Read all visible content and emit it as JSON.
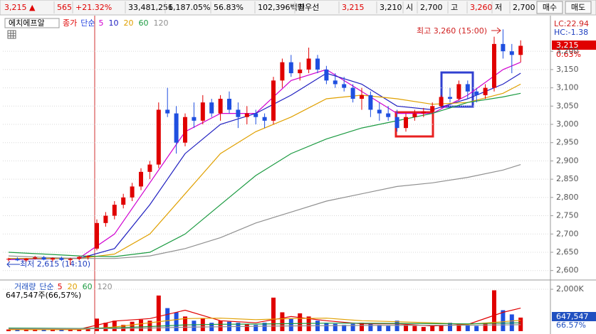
{
  "header": {
    "items": [
      {
        "text": "3,215 ▲",
        "color": "#e00000"
      },
      {
        "text": "565",
        "color": "#e00000"
      },
      {
        "text": "+21.32%",
        "color": "#e00000"
      },
      {
        "text": "33,481,256",
        "color": "#000000"
      },
      {
        "text": "1,187.05%",
        "color": "#000000"
      },
      {
        "text": "56.83%",
        "color": "#000000"
      },
      {
        "text": "102,396백만",
        "color": "#000000"
      },
      {
        "text": "최우선",
        "color": "#000000"
      },
      {
        "text": "3,215",
        "color": "#e00000"
      },
      {
        "text": "3,210",
        "color": "#000000"
      },
      {
        "text": "시",
        "color": "#000000"
      },
      {
        "text": "2,700",
        "color": "#000000"
      },
      {
        "text": "고",
        "color": "#000000"
      },
      {
        "text": "3,260",
        "color": "#e00000"
      },
      {
        "text": "저",
        "color": "#000000"
      },
      {
        "text": "2,700",
        "color": "#000000"
      }
    ],
    "buttons": [
      "매수",
      "매도"
    ]
  },
  "chart_data": [
    {
      "type": "candlestick",
      "title": "에치에프알",
      "legend_prefix": [
        {
          "text": "종가",
          "color": "#e00000"
        },
        {
          "text": "단순",
          "color": "#2040e0"
        }
      ],
      "up_color": "#e00000",
      "down_color": "#1f4fe0",
      "open": [
        2630,
        2632,
        2628,
        2633,
        2636,
        2630,
        2634,
        2629,
        2632,
        2637,
        2660,
        2730,
        2750,
        2780,
        2800,
        2830,
        2870,
        2890,
        3040,
        3030,
        2950,
        3020,
        3010,
        3060,
        3030,
        3070,
        3040,
        3020,
        3030,
        3020,
        3010,
        3120,
        3170,
        3140,
        3150,
        3180,
        3150,
        3120,
        3110,
        3100,
        3070,
        3080,
        3040,
        3030,
        3020,
        2990,
        3020,
        3030,
        3035,
        3050,
        3075,
        3070,
        3110,
        3090,
        3080,
        3100,
        3220,
        3200,
        3190
      ],
      "high": [
        2635,
        2636,
        2634,
        2640,
        2640,
        2636,
        2638,
        2635,
        2640,
        2642,
        2740,
        2760,
        2790,
        2810,
        2840,
        2880,
        2900,
        3060,
        3100,
        3050,
        3030,
        3060,
        3080,
        3070,
        3080,
        3090,
        3060,
        3050,
        3040,
        3030,
        3130,
        3180,
        3190,
        3170,
        3210,
        3190,
        3160,
        3140,
        3130,
        3110,
        3100,
        3090,
        3060,
        3050,
        3040,
        3030,
        3040,
        3045,
        3060,
        3080,
        3100,
        3120,
        3120,
        3100,
        3110,
        3240,
        3260,
        3220,
        3230
      ],
      "low": [
        2625,
        2626,
        2624,
        2630,
        2628,
        2625,
        2626,
        2615,
        2628,
        2630,
        2655,
        2720,
        2740,
        2770,
        2790,
        2820,
        2850,
        2880,
        3020,
        2920,
        2940,
        2990,
        3000,
        3020,
        3010,
        3030,
        2990,
        3000,
        3000,
        2990,
        3000,
        3100,
        3130,
        3120,
        3140,
        3140,
        3110,
        3100,
        3090,
        3060,
        3040,
        3020,
        3010,
        3010,
        2980,
        2980,
        3010,
        3020,
        3030,
        3045,
        3060,
        3065,
        3070,
        3060,
        3070,
        3090,
        3180,
        3140,
        3170
      ],
      "close": [
        2632,
        2628,
        2633,
        2636,
        2630,
        2634,
        2629,
        2632,
        2637,
        2640,
        2730,
        2750,
        2780,
        2800,
        2830,
        2870,
        2890,
        3040,
        3030,
        2950,
        3020,
        3010,
        3060,
        3030,
        3070,
        3040,
        3020,
        3030,
        3020,
        3010,
        3120,
        3170,
        3140,
        3150,
        3180,
        3150,
        3120,
        3110,
        3100,
        3070,
        3080,
        3040,
        3030,
        3020,
        2990,
        3020,
        3030,
        3035,
        3050,
        3075,
        3070,
        3110,
        3090,
        3080,
        3100,
        3220,
        3200,
        3190,
        3215
      ],
      "ylim": [
        2578,
        3282
      ],
      "yticks": [
        {
          "value": 2600,
          "label": "2,600"
        },
        {
          "value": 2650,
          "label": "2,650"
        },
        {
          "value": 2700,
          "label": "2,700"
        },
        {
          "value": 2750,
          "label": "2,750"
        },
        {
          "value": 2800,
          "label": "2,800"
        },
        {
          "value": 2850,
          "label": "2,850"
        },
        {
          "value": 2900,
          "label": "2,900"
        },
        {
          "value": 2950,
          "label": "2,950"
        },
        {
          "value": 3000,
          "label": "3,000"
        },
        {
          "value": 3050,
          "label": "3,050"
        },
        {
          "value": 3100,
          "label": "3,100"
        },
        {
          "value": 3150,
          "label": "3,150"
        },
        {
          "value": 3200,
          "label": "3,200"
        }
      ],
      "grid": true,
      "ma": [
        {
          "name": "5",
          "color": "#d000d0",
          "x": [
            0,
            4,
            8,
            12,
            16,
            20,
            24,
            28,
            32,
            36,
            40,
            44,
            48,
            52,
            56,
            58
          ],
          "values": [
            2630,
            2632,
            2634,
            2700,
            2840,
            2980,
            3030,
            3030,
            3120,
            3150,
            3090,
            3030,
            3030,
            3080,
            3150,
            3170
          ]
        },
        {
          "name": "10",
          "color": "#2020c0",
          "x": [
            0,
            4,
            8,
            12,
            16,
            20,
            24,
            28,
            32,
            36,
            40,
            44,
            48,
            52,
            56,
            58
          ],
          "values": [
            2632,
            2632,
            2633,
            2660,
            2780,
            2920,
            3000,
            3030,
            3080,
            3140,
            3110,
            3050,
            3040,
            3070,
            3110,
            3140
          ]
        },
        {
          "name": "20",
          "color": "#e0a000",
          "x": [
            0,
            4,
            8,
            12,
            16,
            20,
            24,
            28,
            32,
            36,
            40,
            44,
            48,
            52,
            56,
            58
          ],
          "values": [
            2633,
            2633,
            2633,
            2645,
            2700,
            2810,
            2920,
            2980,
            3020,
            3070,
            3080,
            3070,
            3055,
            3060,
            3085,
            3110
          ]
        },
        {
          "name": "60",
          "color": "#1a9a40",
          "x": [
            0,
            4,
            8,
            12,
            16,
            20,
            24,
            28,
            32,
            36,
            40,
            44,
            48,
            52,
            56,
            58
          ],
          "values": [
            2650,
            2645,
            2640,
            2638,
            2650,
            2700,
            2780,
            2860,
            2920,
            2960,
            2990,
            3010,
            3030,
            3060,
            3075,
            3085
          ]
        },
        {
          "name": "120",
          "color": "#909090",
          "x": [
            0,
            4,
            8,
            12,
            16,
            20,
            24,
            28,
            32,
            36,
            40,
            44,
            48,
            52,
            56,
            58
          ],
          "values": [
            2640,
            2636,
            2633,
            2633,
            2640,
            2660,
            2690,
            2730,
            2760,
            2790,
            2810,
            2830,
            2840,
            2855,
            2875,
            2890
          ]
        }
      ],
      "annotations": {
        "high_label": "최고 3,260 (15:00)",
        "low_label": "최저 2,615 (14:10)"
      },
      "side_labels": {
        "lc": "LC:22.94",
        "hc": "HC:-1.38",
        "price": "3,215",
        "change": "0.63%"
      }
    },
    {
      "type": "bar",
      "title": "거래량",
      "legend_prefix": "단순",
      "values": [
        80000,
        60000,
        70000,
        50000,
        90000,
        60000,
        70000,
        120000,
        80000,
        100000,
        600000,
        400000,
        500000,
        300000,
        450000,
        550000,
        500000,
        1700000,
        1100000,
        900000,
        700000,
        500000,
        600000,
        400000,
        500000,
        450000,
        400000,
        350000,
        300000,
        400000,
        1600000,
        900000,
        600000,
        850000,
        700000,
        500000,
        400000,
        350000,
        300000,
        350000,
        400000,
        350000,
        300000,
        250000,
        500000,
        300000,
        250000,
        200000,
        250000,
        300000,
        400000,
        350000,
        300000,
        250000,
        400000,
        1950000,
        1000000,
        800000,
        647547
      ],
      "ylim": [
        0,
        2340000
      ],
      "yticks": [
        {
          "value": 2000000,
          "label": "2,000K"
        }
      ],
      "ma": [
        {
          "name": "5",
          "color": "#e00000",
          "x": [
            0,
            4,
            8,
            12,
            16,
            20,
            24,
            28,
            32,
            36,
            40,
            44,
            48,
            52,
            56,
            58
          ],
          "values": [
            80000,
            70000,
            90000,
            480000,
            600000,
            1000000,
            500000,
            400000,
            700000,
            500000,
            350000,
            350000,
            250000,
            320000,
            900000,
            1100000
          ]
        },
        {
          "name": "20",
          "color": "#e0a000",
          "x": [
            0,
            4,
            8,
            12,
            16,
            20,
            24,
            28,
            32,
            36,
            40,
            44,
            48,
            52,
            56,
            58
          ],
          "values": [
            70000,
            70000,
            75000,
            200000,
            400000,
            600000,
            620000,
            550000,
            600000,
            620000,
            500000,
            450000,
            400000,
            330000,
            450000,
            520000
          ]
        },
        {
          "name": "60",
          "color": "#1a9a40",
          "x": [
            0,
            4,
            8,
            12,
            16,
            20,
            24,
            28,
            32,
            36,
            40,
            44,
            48,
            52,
            56,
            58
          ],
          "values": [
            150000,
            140000,
            130000,
            160000,
            220000,
            300000,
            330000,
            340000,
            360000,
            380000,
            380000,
            370000,
            360000,
            350000,
            380000,
            400000
          ]
        },
        {
          "name": "120",
          "color": "#909090",
          "x": [
            0,
            4,
            8,
            12,
            16,
            20,
            24,
            28,
            32,
            36,
            40,
            44,
            48,
            52,
            56,
            58
          ],
          "values": [
            120000,
            120000,
            115000,
            125000,
            150000,
            190000,
            210000,
            230000,
            250000,
            260000,
            270000,
            275000,
            280000,
            285000,
            300000,
            310000
          ]
        }
      ],
      "summary": "647,547주(66,57%)",
      "side_labels": {
        "volume": "647,547",
        "ratio": "66.57%"
      }
    }
  ]
}
